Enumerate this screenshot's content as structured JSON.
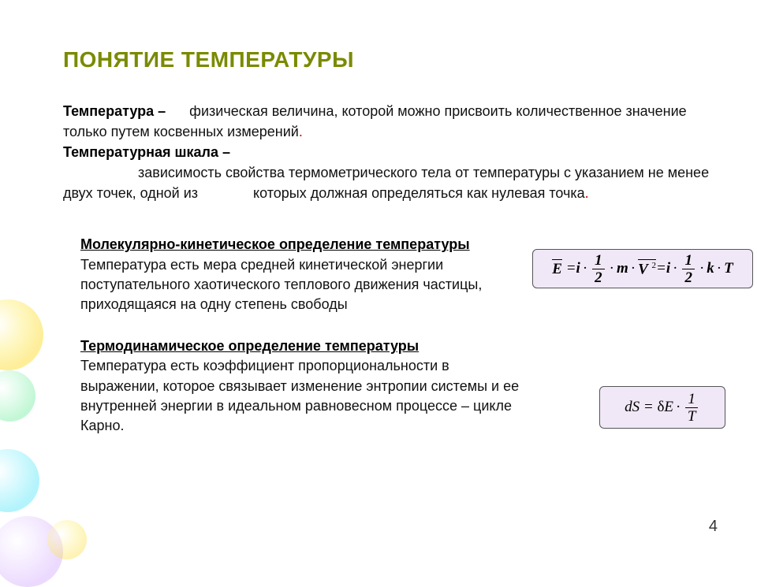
{
  "title": {
    "text": "ПОНЯТИЕ ТЕМПЕРАТУРЫ",
    "color": "#7a8a00"
  },
  "intro": {
    "term1": "Температура",
    "def1": "физическая величина, которой можно присвоить количественное значение только путем косвенных измерений",
    "term2": "Температурная шкала",
    "def2": "зависимость свойства термометрического тела от температуры с указанием не менее двух точек, одной из              которых должная определяться как нулевая точка"
  },
  "sections": {
    "molecular": {
      "heading": "Молекулярно-кинетическое определение температуры",
      "body": "Температура есть мера средней кинетической энергии поступательного хаотического теплового движения частицы, приходящаяся на одну степень свободы"
    },
    "thermo": {
      "heading": "Термодинамическое определение температуры",
      "body": "Температура есть коэффициент пропорциональности в выражении, которое связывает изменение энтропии системы и ее внутренней энергии в идеальном равновесном  процессе – цикле Карно."
    }
  },
  "page_number": "4",
  "colors": {
    "title": "#7a8a00",
    "dot": "#c40000",
    "formula_bg": "#f1e8f7"
  }
}
